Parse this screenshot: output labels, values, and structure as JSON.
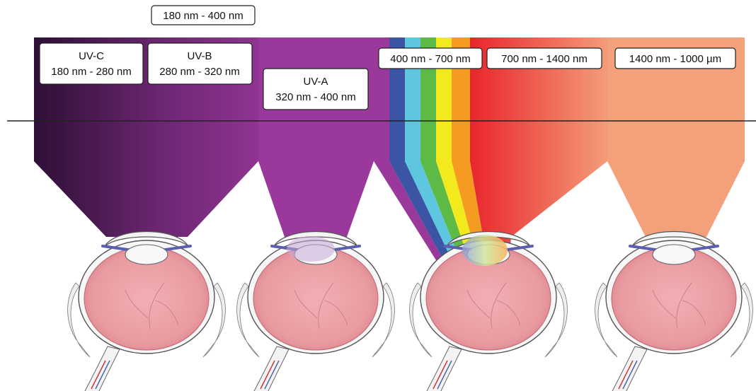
{
  "labels": {
    "uv_total": "180 nm - 400 nm",
    "uvc": {
      "name": "UV-C",
      "range": "180 nm - 280 nm"
    },
    "uvb": {
      "name": "UV-B",
      "range": "280 nm - 320 nm"
    },
    "uva": {
      "name": "UV-A",
      "range": "320 nm - 400 nm"
    },
    "visible": "400 nm - 700 nm",
    "near_ir": "700 nm - 1400 nm",
    "far_ir": "1400 nm - 1000 µm"
  },
  "colors": {
    "uv_dark": "#2e0f36",
    "uv_mid": "#7b2a7c",
    "uva": "#9b389c",
    "spectrum": [
      "#3b55a4",
      "#5ec6de",
      "#5dba46",
      "#f2ea1c",
      "#f59b22"
    ],
    "red": "#e8262d",
    "salmon": "#f4a07a",
    "eye_tissue": "#ef9ea4",
    "eye_outline": "#555555",
    "lens": "#f6f6f6",
    "iris": "#5a5fb0"
  }
}
